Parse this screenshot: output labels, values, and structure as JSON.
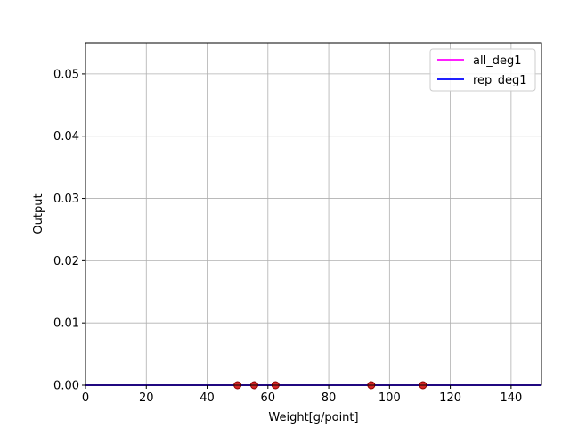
{
  "chart_data": {
    "type": "line",
    "xlabel": "Weight[g/point]",
    "ylabel": "Output",
    "xlim": [
      0,
      150
    ],
    "ylim": [
      0,
      0.055
    ],
    "xticks": [
      0,
      20,
      40,
      60,
      80,
      100,
      120,
      140
    ],
    "xtick_labels": [
      "0",
      "20",
      "40",
      "60",
      "80",
      "100",
      "120",
      "140"
    ],
    "yticks": [
      0,
      0.01,
      0.02,
      0.03,
      0.04,
      0.05
    ],
    "ytick_labels": [
      "0.00",
      "0.01",
      "0.02",
      "0.03",
      "0.04",
      "0.05"
    ],
    "grid": true,
    "legend_position": "top-right",
    "series": [
      {
        "name": "all_deg1",
        "color": "#ff00ff",
        "x": [
          0,
          150
        ],
        "y": [
          0,
          0
        ]
      },
      {
        "name": "rep_deg1",
        "color": "#0000ff",
        "x": [
          0,
          150
        ],
        "y": [
          0,
          0
        ]
      }
    ],
    "points": {
      "color": "#d62728",
      "edge_color": "#8b0000",
      "x": [
        50,
        55.5,
        62.5,
        94,
        111
      ],
      "y": [
        0,
        0,
        0,
        0,
        0
      ]
    }
  }
}
